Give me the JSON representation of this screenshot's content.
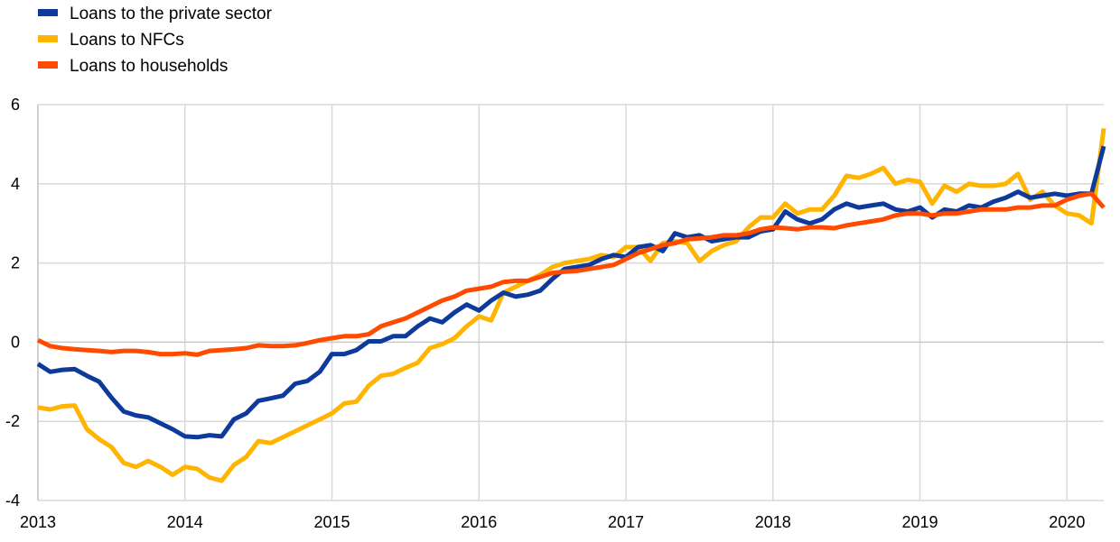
{
  "chart_data": {
    "type": "line",
    "title": "",
    "xlabel": "",
    "ylabel": "",
    "ylim": [
      -4,
      6
    ],
    "yticks": [
      -4,
      -2,
      0,
      2,
      4,
      6
    ],
    "ytick_labels": [
      "-4",
      "-2",
      "0",
      "2",
      "4",
      "6"
    ],
    "xlim": [
      "2013-01",
      "2020-04"
    ],
    "xticks": [
      "2013",
      "2014",
      "2015",
      "2016",
      "2017",
      "2018",
      "2019",
      "2020"
    ],
    "grid": true,
    "legend_position": "top-left",
    "x": [
      "2013-01",
      "2013-02",
      "2013-03",
      "2013-04",
      "2013-05",
      "2013-06",
      "2013-07",
      "2013-08",
      "2013-09",
      "2013-10",
      "2013-11",
      "2013-12",
      "2014-01",
      "2014-02",
      "2014-03",
      "2014-04",
      "2014-05",
      "2014-06",
      "2014-07",
      "2014-08",
      "2014-09",
      "2014-10",
      "2014-11",
      "2014-12",
      "2015-01",
      "2015-02",
      "2015-03",
      "2015-04",
      "2015-05",
      "2015-06",
      "2015-07",
      "2015-08",
      "2015-09",
      "2015-10",
      "2015-11",
      "2015-12",
      "2016-01",
      "2016-02",
      "2016-03",
      "2016-04",
      "2016-05",
      "2016-06",
      "2016-07",
      "2016-08",
      "2016-09",
      "2016-10",
      "2016-11",
      "2016-12",
      "2017-01",
      "2017-02",
      "2017-03",
      "2017-04",
      "2017-05",
      "2017-06",
      "2017-07",
      "2017-08",
      "2017-09",
      "2017-10",
      "2017-11",
      "2017-12",
      "2018-01",
      "2018-02",
      "2018-03",
      "2018-04",
      "2018-05",
      "2018-06",
      "2018-07",
      "2018-08",
      "2018-09",
      "2018-10",
      "2018-11",
      "2018-12",
      "2019-01",
      "2019-02",
      "2019-03",
      "2019-04",
      "2019-05",
      "2019-06",
      "2019-07",
      "2019-08",
      "2019-09",
      "2019-10",
      "2019-11",
      "2019-12",
      "2020-01",
      "2020-02",
      "2020-03",
      "2020-04"
    ],
    "series": [
      {
        "name": "Loans to the private sector",
        "color": "#0d3a9b",
        "values": [
          -0.55,
          -0.75,
          -0.7,
          -0.68,
          -0.85,
          -1.0,
          -1.4,
          -1.75,
          -1.85,
          -1.9,
          -2.05,
          -2.2,
          -2.38,
          -2.4,
          -2.35,
          -2.38,
          -1.95,
          -1.8,
          -1.48,
          -1.42,
          -1.35,
          -1.05,
          -0.98,
          -0.75,
          -0.3,
          -0.3,
          -0.2,
          0.02,
          0.02,
          0.15,
          0.15,
          0.4,
          0.6,
          0.5,
          0.75,
          0.95,
          0.8,
          1.05,
          1.25,
          1.15,
          1.2,
          1.3,
          1.6,
          1.85,
          1.9,
          1.95,
          2.1,
          2.2,
          2.15,
          2.4,
          2.45,
          2.3,
          2.75,
          2.65,
          2.7,
          2.55,
          2.6,
          2.65,
          2.65,
          2.8,
          2.85,
          3.3,
          3.1,
          3.0,
          3.1,
          3.35,
          3.5,
          3.4,
          3.45,
          3.5,
          3.35,
          3.3,
          3.4,
          3.15,
          3.35,
          3.3,
          3.45,
          3.4,
          3.55,
          3.65,
          3.8,
          3.65,
          3.7,
          3.75,
          3.7,
          3.75,
          3.75,
          4.95
        ]
      },
      {
        "name": "Loans to NFCs",
        "color": "#ffb400",
        "values": [
          -1.65,
          -1.7,
          -1.62,
          -1.6,
          -2.2,
          -2.45,
          -2.65,
          -3.05,
          -3.15,
          -3.0,
          -3.15,
          -3.35,
          -3.15,
          -3.2,
          -3.42,
          -3.5,
          -3.1,
          -2.9,
          -2.5,
          -2.55,
          -2.4,
          -2.25,
          -2.1,
          -1.95,
          -1.8,
          -1.55,
          -1.5,
          -1.1,
          -0.85,
          -0.8,
          -0.65,
          -0.52,
          -0.15,
          -0.05,
          0.1,
          0.4,
          0.65,
          0.55,
          1.25,
          1.4,
          1.55,
          1.7,
          1.9,
          2.0,
          2.05,
          2.1,
          2.2,
          2.15,
          2.4,
          2.4,
          2.05,
          2.5,
          2.55,
          2.5,
          2.05,
          2.3,
          2.45,
          2.55,
          2.9,
          3.15,
          3.15,
          3.5,
          3.25,
          3.35,
          3.35,
          3.7,
          4.2,
          4.15,
          4.25,
          4.4,
          4.0,
          4.1,
          4.05,
          3.5,
          3.95,
          3.8,
          4.0,
          3.95,
          3.95,
          4.0,
          4.25,
          3.6,
          3.8,
          3.45,
          3.25,
          3.2,
          3.0,
          5.4
        ]
      },
      {
        "name": "Loans to households",
        "color": "#ff4b00",
        "values": [
          0.05,
          -0.1,
          -0.15,
          -0.18,
          -0.2,
          -0.22,
          -0.25,
          -0.22,
          -0.22,
          -0.25,
          -0.3,
          -0.3,
          -0.28,
          -0.32,
          -0.22,
          -0.2,
          -0.18,
          -0.15,
          -0.08,
          -0.1,
          -0.1,
          -0.08,
          -0.02,
          0.05,
          0.1,
          0.15,
          0.15,
          0.2,
          0.4,
          0.5,
          0.6,
          0.75,
          0.9,
          1.05,
          1.15,
          1.3,
          1.35,
          1.4,
          1.52,
          1.55,
          1.55,
          1.65,
          1.75,
          1.78,
          1.8,
          1.85,
          1.9,
          1.95,
          2.1,
          2.25,
          2.35,
          2.45,
          2.5,
          2.6,
          2.62,
          2.65,
          2.7,
          2.7,
          2.75,
          2.85,
          2.9,
          2.88,
          2.85,
          2.9,
          2.9,
          2.88,
          2.95,
          3.0,
          3.05,
          3.1,
          3.2,
          3.25,
          3.25,
          3.2,
          3.25,
          3.25,
          3.3,
          3.35,
          3.35,
          3.35,
          3.4,
          3.4,
          3.45,
          3.45,
          3.6,
          3.7,
          3.75,
          3.4
        ]
      }
    ]
  }
}
